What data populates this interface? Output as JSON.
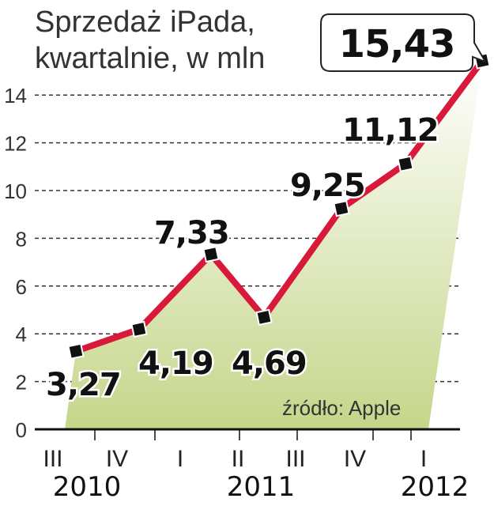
{
  "chart_data": {
    "type": "area",
    "title_lines": [
      "Sprzedaż iPada,",
      "kwartalnie, w mln"
    ],
    "categories": [
      "III",
      "IV",
      "I",
      "II",
      "III",
      "IV",
      "I"
    ],
    "years": [
      "2010",
      "2011",
      "2012"
    ],
    "values": [
      3.27,
      4.19,
      7.33,
      4.69,
      9.25,
      11.12,
      15.43
    ],
    "value_labels": [
      "3,27",
      "4,19",
      "7,33",
      "4,69",
      "9,25",
      "11,12",
      "15,43"
    ],
    "yticks": [
      0,
      2,
      4,
      6,
      8,
      10,
      12,
      14
    ],
    "ylim": [
      0,
      15.43
    ],
    "grid": "dashed horizontal",
    "source": "źródło: Apple",
    "colors": {
      "line": "#d8193a",
      "area_top": "#ffffff",
      "area_bottom": "#c5d68a",
      "marker": "#111111",
      "grid": "#333333"
    }
  }
}
